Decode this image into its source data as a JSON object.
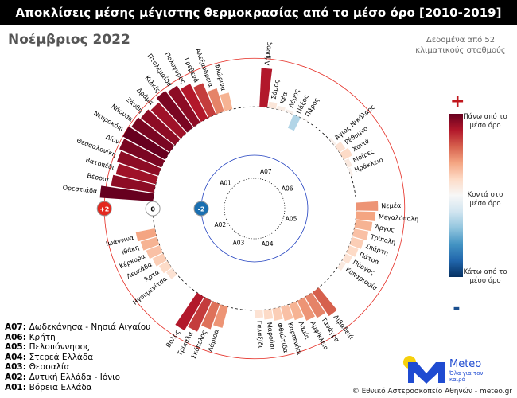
{
  "title": "Αποκλίσεις μέσης μέγιστης θερμοκρασίας από το μέσο όρο [2010-2019]",
  "subtitle": "Νοέμβριος 2022",
  "note": "Δεδομένα από 52 κλιματικούς σταθμούς",
  "footer": "© Εθνικό Αστεροσκοπείο Αθηνών - meteo.gr",
  "logo": {
    "name": "Meteo",
    "tagline": "Όλα για τον καιρό"
  },
  "chart_data": {
    "type": "radial_bar",
    "ylim": [
      -4.2,
      2.5
    ],
    "yticks": [
      {
        "value": 2,
        "label": "+2"
      },
      0,
      {
        "value": -2,
        "label": "-2"
      }
    ],
    "clim": [
      -2,
      2
    ],
    "colormap": [
      "#053061",
      "#2166ac",
      "#4393c3",
      "#92c5de",
      "#d1e5f0",
      "#f7f7f7",
      "#fddbc7",
      "#f4a582",
      "#d6604d",
      "#b2182b",
      "#67001f"
    ],
    "colorbar": {
      "plus": "+",
      "minus": "-",
      "high": "Πάνω από το μέσο όρο",
      "mid": "Κοντά στο μέσο όρο",
      "low": "Κάτω από το μέσο όρο"
    },
    "groups": [
      {
        "code": "A07",
        "name": "Δωδεκάνησα - Νησιά Αιγαίου",
        "categories": [
          "Λήμνος",
          "Σάμος",
          "Κέα",
          "Λέρος",
          "Νάξος",
          "Πάρος"
        ],
        "values": [
          1.6,
          0.25,
          0.15,
          0.1,
          -0.6,
          0.05
        ]
      },
      {
        "code": "A06",
        "name": "Κρήτη",
        "categories": [
          "Άγιος Νικόλαος",
          "Ρέθυμνο",
          "Χανιά",
          "Μοίρες",
          "Ηράκλειο"
        ],
        "values": [
          0.1,
          0.3,
          0.4,
          0.2,
          0.1
        ]
      },
      {
        "code": "A05",
        "name": "Πελοπόννησος",
        "categories": [
          "Νεμέα",
          "Μεγαλόπολη",
          "Άργος",
          "Τρίπολη",
          "Σπάρτη",
          "Πάτρα",
          "Πύργος",
          "Κυπαρισσία"
        ],
        "values": [
          0.9,
          0.8,
          0.7,
          0.6,
          0.5,
          0.4,
          0.3,
          0.2
        ]
      },
      {
        "code": "A04",
        "name": "Στερεά Ελλάδα",
        "categories": [
          "Λιβαδειά",
          "Τανάγρα",
          "Αμφίκλεια",
          "Λαμία",
          "Καρπενήσι",
          "Φθιώτιδα",
          "Μαρούσι",
          "Γαλαξίδι"
        ],
        "values": [
          1.2,
          1.0,
          0.9,
          0.7,
          0.6,
          0.5,
          0.4,
          0.3
        ]
      },
      {
        "code": "A03",
        "name": "Θεσσαλία",
        "categories": [
          "Λάρισα",
          "Σκόπελος",
          "Τρίκαλα",
          "Βόλος"
        ],
        "values": [
          0.9,
          1.1,
          1.4,
          1.6
        ]
      },
      {
        "code": "A02",
        "name": "Δυτική Ελλάδα - Ιόνιο",
        "categories": [
          "Ηγουμενίτσα",
          "Άρτα",
          "Λευκάδα",
          "Κέρκυρα",
          "Ιθάκη",
          "Ιωάννινα"
        ],
        "values": [
          0.3,
          0.4,
          0.5,
          0.6,
          0.7,
          0.8
        ]
      },
      {
        "code": "A01",
        "name": "Βόρεια Ελλάδα",
        "categories": [
          "Ορεστιάδα",
          "Βέροια",
          "Βατοπέδι",
          "Θεσσαλονίκη",
          "Δίον",
          "Νευροκόπι",
          "Νάουσα",
          "Ξάνθη",
          "Δράμα",
          "Κιλκίς",
          "Πτολεμαΐδα",
          "Πολύγυρος",
          "Γρεβενά",
          "Αλεξάνδρεια",
          "Φλώρινα"
        ],
        "values": [
          2.2,
          1.8,
          1.7,
          1.8,
          1.9,
          2.0,
          1.9,
          1.8,
          1.7,
          1.9,
          1.8,
          1.6,
          1.4,
          1.0,
          0.7
        ]
      }
    ]
  }
}
